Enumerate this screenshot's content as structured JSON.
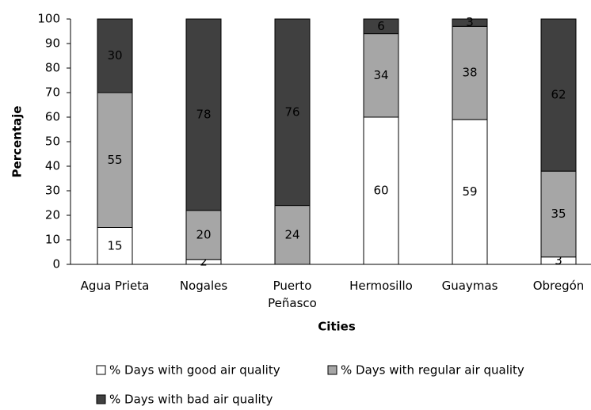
{
  "chart_data": {
    "type": "stacked_bar",
    "y_label": "Percentaje",
    "x_label": "Cities",
    "categories": [
      "Agua Prieta",
      "Nogales",
      "Puerto Peñasco",
      "Hermosillo",
      "Guaymas",
      "Obregón"
    ],
    "series": [
      {
        "name": "% Days with good air quality",
        "color": "#ffffff",
        "values": [
          15,
          2,
          0,
          60,
          59,
          3
        ]
      },
      {
        "name": "% Days with regular air quality",
        "color": "#a6a6a6",
        "values": [
          55,
          20,
          24,
          34,
          38,
          35
        ]
      },
      {
        "name": "% Days with bad air quality",
        "color": "#404040",
        "values": [
          30,
          78,
          76,
          6,
          3,
          62
        ]
      }
    ],
    "ylim": [
      0,
      100
    ],
    "yticks": [
      0,
      10,
      20,
      30,
      40,
      50,
      60,
      70,
      80,
      90,
      100
    ]
  }
}
